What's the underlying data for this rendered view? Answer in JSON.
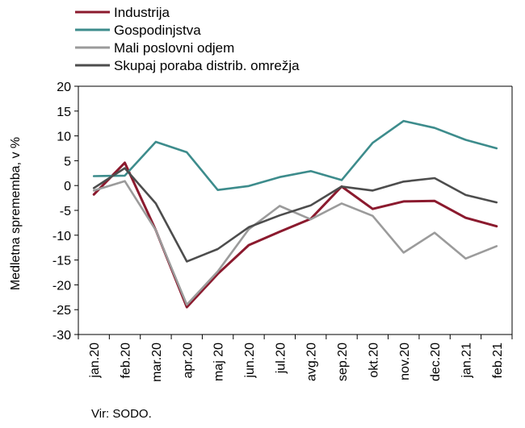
{
  "chart_data": {
    "type": "line",
    "categories": [
      "jan.20",
      "feb.20",
      "mar.20",
      "apr.20",
      "maj 20",
      "jun.20",
      "jul.20",
      "avg.20",
      "sep.20",
      "okt.20",
      "nov.20",
      "dec.20",
      "jan.21",
      "feb.21"
    ],
    "ylabel": "Medletna sprememba, v %",
    "ylim": [
      -30,
      20
    ],
    "yticks": [
      20,
      15,
      10,
      5,
      0,
      -5,
      -10,
      -15,
      -20,
      -25,
      -30
    ],
    "grid": false,
    "legend_position": "top-left",
    "series": [
      {
        "name": "Industrija",
        "color": "#8B1A2E",
        "values": [
          -1.8,
          4.6,
          -9.0,
          -24.5,
          -17.8,
          -12.0,
          -9.3,
          -6.7,
          -0.2,
          -4.7,
          -3.2,
          -3.1,
          -6.5,
          -8.2
        ]
      },
      {
        "name": "Gospodinjstva",
        "color": "#3D8C8C",
        "values": [
          1.9,
          2.0,
          8.8,
          6.7,
          -0.9,
          -0.1,
          1.7,
          2.9,
          1.1,
          8.6,
          13.0,
          11.6,
          9.2,
          7.5
        ]
      },
      {
        "name": "Mali poslovni odjem",
        "color": "#9B9B9B",
        "values": [
          -1.0,
          0.9,
          -9.0,
          -24.0,
          -17.3,
          -8.8,
          -4.1,
          -6.8,
          -3.6,
          -6.1,
          -13.5,
          -9.5,
          -14.7,
          -12.2
        ]
      },
      {
        "name": "Skupaj poraba distrib. omrežja",
        "color": "#4D4D4D",
        "values": [
          -0.5,
          3.5,
          -3.6,
          -15.3,
          -12.8,
          -8.4,
          -6.0,
          -4.0,
          -0.2,
          -1.0,
          0.8,
          1.5,
          -1.9,
          -3.4
        ]
      }
    ]
  },
  "source": "Vir: SODO."
}
